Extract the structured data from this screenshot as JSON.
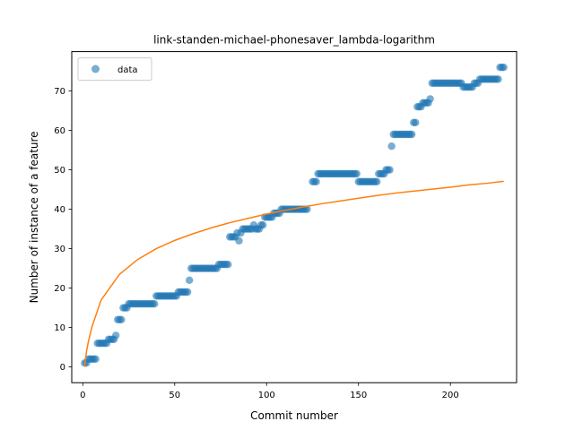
{
  "chart_data": {
    "type": "scatter",
    "title": "link-standen-michael-phonesaver_lambda-logarithm",
    "xlabel": "Commit number",
    "ylabel": "Number of instance of a feature",
    "xlim": [
      -6,
      236
    ],
    "ylim": [
      -4,
      80
    ],
    "xticks": [
      0,
      50,
      100,
      150,
      200
    ],
    "yticks": [
      0,
      10,
      20,
      30,
      40,
      50,
      60,
      70
    ],
    "grid": false,
    "legend_position": "top-left",
    "colors": {
      "scatter": "#1f77b4",
      "fit": "#ff7f0e"
    },
    "series": [
      {
        "name": "data",
        "kind": "scatter",
        "points": [
          [
            1,
            1
          ],
          [
            2,
            1
          ],
          [
            3,
            2
          ],
          [
            4,
            2
          ],
          [
            5,
            2
          ],
          [
            6,
            2
          ],
          [
            7,
            2
          ],
          [
            8,
            6
          ],
          [
            9,
            6
          ],
          [
            10,
            6
          ],
          [
            11,
            6
          ],
          [
            12,
            6
          ],
          [
            13,
            6
          ],
          [
            14,
            7
          ],
          [
            15,
            7
          ],
          [
            16,
            7
          ],
          [
            17,
            7
          ],
          [
            18,
            8
          ],
          [
            19,
            12
          ],
          [
            20,
            12
          ],
          [
            21,
            12
          ],
          [
            22,
            15
          ],
          [
            23,
            15
          ],
          [
            24,
            15
          ],
          [
            25,
            16
          ],
          [
            26,
            16
          ],
          [
            27,
            16
          ],
          [
            28,
            16
          ],
          [
            29,
            16
          ],
          [
            30,
            16
          ],
          [
            31,
            16
          ],
          [
            32,
            16
          ],
          [
            33,
            16
          ],
          [
            34,
            16
          ],
          [
            35,
            16
          ],
          [
            36,
            16
          ],
          [
            37,
            16
          ],
          [
            38,
            16
          ],
          [
            39,
            16
          ],
          [
            40,
            18
          ],
          [
            41,
            18
          ],
          [
            42,
            18
          ],
          [
            43,
            18
          ],
          [
            44,
            18
          ],
          [
            45,
            18
          ],
          [
            46,
            18
          ],
          [
            47,
            18
          ],
          [
            48,
            18
          ],
          [
            49,
            18
          ],
          [
            50,
            18
          ],
          [
            51,
            18
          ],
          [
            52,
            19
          ],
          [
            53,
            19
          ],
          [
            54,
            19
          ],
          [
            55,
            19
          ],
          [
            56,
            19
          ],
          [
            57,
            19
          ],
          [
            58,
            22
          ],
          [
            59,
            25
          ],
          [
            60,
            25
          ],
          [
            61,
            25
          ],
          [
            62,
            25
          ],
          [
            63,
            25
          ],
          [
            64,
            25
          ],
          [
            65,
            25
          ],
          [
            66,
            25
          ],
          [
            67,
            25
          ],
          [
            68,
            25
          ],
          [
            69,
            25
          ],
          [
            70,
            25
          ],
          [
            71,
            25
          ],
          [
            72,
            25
          ],
          [
            73,
            25
          ],
          [
            74,
            26
          ],
          [
            75,
            26
          ],
          [
            76,
            26
          ],
          [
            77,
            26
          ],
          [
            78,
            26
          ],
          [
            79,
            26
          ],
          [
            80,
            33
          ],
          [
            81,
            33
          ],
          [
            82,
            33
          ],
          [
            83,
            33
          ],
          [
            84,
            34
          ],
          [
            85,
            32
          ],
          [
            86,
            34
          ],
          [
            87,
            35
          ],
          [
            88,
            35
          ],
          [
            89,
            35
          ],
          [
            90,
            35
          ],
          [
            91,
            35
          ],
          [
            92,
            35
          ],
          [
            93,
            36
          ],
          [
            94,
            35
          ],
          [
            95,
            35
          ],
          [
            96,
            35
          ],
          [
            97,
            36
          ],
          [
            98,
            36
          ],
          [
            99,
            38
          ],
          [
            100,
            38
          ],
          [
            101,
            38
          ],
          [
            102,
            38
          ],
          [
            103,
            38
          ],
          [
            104,
            39
          ],
          [
            105,
            39
          ],
          [
            106,
            39
          ],
          [
            107,
            39
          ],
          [
            108,
            40
          ],
          [
            109,
            40
          ],
          [
            110,
            40
          ],
          [
            111,
            40
          ],
          [
            112,
            40
          ],
          [
            113,
            40
          ],
          [
            114,
            40
          ],
          [
            115,
            40
          ],
          [
            116,
            40
          ],
          [
            117,
            40
          ],
          [
            118,
            40
          ],
          [
            119,
            40
          ],
          [
            120,
            40
          ],
          [
            121,
            40
          ],
          [
            122,
            40
          ],
          [
            125,
            47
          ],
          [
            126,
            47
          ],
          [
            127,
            47
          ],
          [
            128,
            49
          ],
          [
            129,
            49
          ],
          [
            130,
            49
          ],
          [
            131,
            49
          ],
          [
            132,
            49
          ],
          [
            133,
            49
          ],
          [
            134,
            49
          ],
          [
            135,
            49
          ],
          [
            136,
            49
          ],
          [
            137,
            49
          ],
          [
            138,
            49
          ],
          [
            139,
            49
          ],
          [
            140,
            49
          ],
          [
            141,
            49
          ],
          [
            142,
            49
          ],
          [
            143,
            49
          ],
          [
            144,
            49
          ],
          [
            145,
            49
          ],
          [
            146,
            49
          ],
          [
            147,
            49
          ],
          [
            148,
            49
          ],
          [
            149,
            49
          ],
          [
            150,
            47
          ],
          [
            151,
            47
          ],
          [
            152,
            47
          ],
          [
            153,
            47
          ],
          [
            154,
            47
          ],
          [
            155,
            47
          ],
          [
            156,
            47
          ],
          [
            157,
            47
          ],
          [
            158,
            47
          ],
          [
            159,
            47
          ],
          [
            160,
            47
          ],
          [
            161,
            49
          ],
          [
            162,
            49
          ],
          [
            163,
            49
          ],
          [
            164,
            49
          ],
          [
            165,
            50
          ],
          [
            166,
            50
          ],
          [
            167,
            50
          ],
          [
            168,
            56
          ],
          [
            169,
            59
          ],
          [
            170,
            59
          ],
          [
            171,
            59
          ],
          [
            172,
            59
          ],
          [
            173,
            59
          ],
          [
            174,
            59
          ],
          [
            175,
            59
          ],
          [
            176,
            59
          ],
          [
            177,
            59
          ],
          [
            178,
            59
          ],
          [
            179,
            59
          ],
          [
            180,
            62
          ],
          [
            181,
            62
          ],
          [
            182,
            66
          ],
          [
            183,
            66
          ],
          [
            184,
            66
          ],
          [
            185,
            67
          ],
          [
            186,
            67
          ],
          [
            187,
            67
          ],
          [
            188,
            67
          ],
          [
            189,
            68
          ],
          [
            190,
            72
          ],
          [
            191,
            72
          ],
          [
            192,
            72
          ],
          [
            193,
            72
          ],
          [
            194,
            72
          ],
          [
            195,
            72
          ],
          [
            196,
            72
          ],
          [
            197,
            72
          ],
          [
            198,
            72
          ],
          [
            199,
            72
          ],
          [
            200,
            72
          ],
          [
            201,
            72
          ],
          [
            202,
            72
          ],
          [
            203,
            72
          ],
          [
            204,
            72
          ],
          [
            205,
            72
          ],
          [
            206,
            72
          ],
          [
            207,
            71
          ],
          [
            208,
            71
          ],
          [
            209,
            71
          ],
          [
            210,
            71
          ],
          [
            211,
            71
          ],
          [
            212,
            71
          ],
          [
            213,
            72
          ],
          [
            214,
            72
          ],
          [
            215,
            72
          ],
          [
            216,
            73
          ],
          [
            217,
            73
          ],
          [
            218,
            73
          ],
          [
            219,
            73
          ],
          [
            220,
            73
          ],
          [
            221,
            73
          ],
          [
            222,
            73
          ],
          [
            223,
            73
          ],
          [
            224,
            73
          ],
          [
            225,
            73
          ],
          [
            226,
            73
          ],
          [
            227,
            76
          ],
          [
            228,
            76
          ],
          [
            229,
            76
          ]
        ]
      },
      {
        "kind": "line",
        "fit": "logarithmic",
        "x_range": [
          1,
          229
        ],
        "points": [
          [
            1,
            0.05
          ],
          [
            2,
            3.9
          ],
          [
            3,
            6.3
          ],
          [
            5,
            10.2
          ],
          [
            10,
            17.0
          ],
          [
            20,
            23.5
          ],
          [
            30,
            27.3
          ],
          [
            40,
            30.0
          ],
          [
            50,
            32.1
          ],
          [
            60,
            33.8
          ],
          [
            70,
            35.3
          ],
          [
            80,
            36.6
          ],
          [
            90,
            37.7
          ],
          [
            100,
            38.8
          ],
          [
            110,
            39.7
          ],
          [
            120,
            40.6
          ],
          [
            130,
            41.4
          ],
          [
            140,
            42.1
          ],
          [
            150,
            42.8
          ],
          [
            160,
            43.5
          ],
          [
            170,
            44.1
          ],
          [
            180,
            44.6
          ],
          [
            190,
            45.1
          ],
          [
            200,
            45.6
          ],
          [
            210,
            46.2
          ],
          [
            220,
            46.6
          ],
          [
            229,
            47.1
          ]
        ]
      }
    ]
  }
}
